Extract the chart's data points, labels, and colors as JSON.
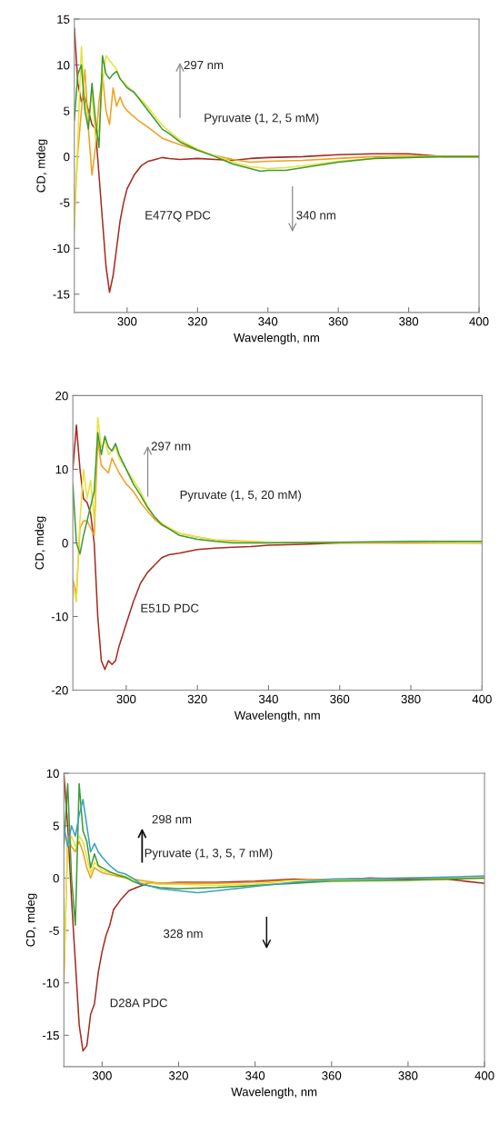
{
  "chart_data": [
    {
      "type": "line",
      "xlabel": "Wavelength, nm",
      "ylabel": "CD, mdeg",
      "xlim": [
        285,
        400
      ],
      "ylim": [
        -17,
        15
      ],
      "xticks": [
        300,
        320,
        340,
        360,
        380,
        400
      ],
      "yticks": [
        -15,
        -10,
        -5,
        0,
        5,
        10,
        15
      ],
      "series": [
        {
          "color": "#a52a1e",
          "x": [
            285,
            286,
            287,
            288,
            289,
            290,
            291,
            292,
            293,
            294,
            295,
            296,
            297,
            298,
            299,
            300,
            302,
            304,
            306,
            308,
            310,
            312,
            315,
            320,
            325,
            330,
            335,
            340,
            350,
            360,
            370,
            380,
            390,
            400
          ],
          "values": [
            14,
            8,
            6,
            6.5,
            5,
            3.5,
            3,
            -2,
            -7,
            -12,
            -14.8,
            -13,
            -10,
            -7,
            -5,
            -3.5,
            -2,
            -1,
            -0.5,
            -0.3,
            -0.1,
            -0.2,
            -0.3,
            -0.2,
            -0.3,
            -0.4,
            -0.2,
            -0.1,
            0,
            0.2,
            0.3,
            0.3,
            0,
            0
          ]
        },
        {
          "color": "#f0a020",
          "x": [
            285,
            286,
            287,
            288,
            289,
            290,
            291,
            292,
            293,
            294,
            295,
            296,
            297,
            298,
            299,
            300,
            303,
            306,
            310,
            315,
            320,
            325,
            330,
            335,
            340,
            350,
            360,
            370,
            380,
            390,
            400
          ],
          "values": [
            -6,
            0.5,
            5,
            9.5,
            3,
            -2,
            1,
            6,
            9,
            5,
            3.5,
            7.5,
            5.5,
            6.5,
            5.5,
            5,
            4,
            3.2,
            2,
            1.3,
            0.7,
            0.1,
            -0.3,
            -0.6,
            -0.5,
            -0.4,
            -0.2,
            0,
            0.1,
            0,
            0
          ]
        },
        {
          "color": "#e6e23c",
          "x": [
            285,
            286,
            287,
            288,
            289,
            290,
            291,
            292,
            293,
            294,
            295,
            296,
            297,
            298,
            300,
            302,
            305,
            310,
            315,
            320,
            325,
            330,
            335,
            340,
            345,
            350,
            360,
            370,
            380,
            400
          ],
          "values": [
            -8,
            2,
            12,
            6,
            4,
            7,
            2,
            3,
            8,
            11,
            10.5,
            10,
            9.5,
            8.5,
            7.7,
            7,
            5.8,
            3.4,
            1.8,
            0.8,
            0.1,
            -0.6,
            -1.1,
            -1.3,
            -1.2,
            -1,
            -0.5,
            -0.2,
            0,
            0
          ]
        },
        {
          "color": "#3c9a32",
          "x": [
            285,
            286,
            287,
            288,
            289,
            290,
            291,
            292,
            293,
            294,
            295,
            296,
            297,
            298,
            299,
            300,
            302,
            304,
            306,
            308,
            310,
            312,
            315,
            320,
            325,
            330,
            335,
            338,
            340,
            345,
            350,
            355,
            360,
            365,
            370,
            380,
            390,
            400
          ],
          "values": [
            4,
            9,
            10,
            5,
            3,
            8,
            4,
            1,
            11,
            9,
            8.5,
            9,
            9.3,
            8.5,
            8,
            7.5,
            7,
            6,
            5,
            4,
            3,
            2.5,
            1.6,
            0.7,
            0,
            -0.8,
            -1.3,
            -1.6,
            -1.5,
            -1.5,
            -1.2,
            -0.9,
            -0.6,
            -0.4,
            -0.2,
            -0.1,
            0,
            0
          ]
        }
      ],
      "annotations": [
        "297 nm",
        "Pyruvate (1, 2, 5 mM)",
        "E477Q PDC",
        "340 nm"
      ]
    },
    {
      "type": "line",
      "xlabel": "Wavelength, nm",
      "ylabel": "CD, mdeg",
      "xlim": [
        285,
        400
      ],
      "ylim": [
        -20,
        20
      ],
      "xticks": [
        300,
        320,
        340,
        360,
        380,
        400
      ],
      "yticks": [
        -20,
        -10,
        0,
        10,
        20
      ],
      "series": [
        {
          "color": "#a52a1e",
          "x": [
            285,
            286,
            287,
            288,
            289,
            290,
            291,
            292,
            293,
            294,
            295,
            296,
            297,
            298,
            300,
            302,
            304,
            306,
            308,
            310,
            312,
            315,
            320,
            325,
            330,
            335,
            340,
            350,
            360,
            370,
            380,
            400
          ],
          "values": [
            10,
            16,
            10,
            6,
            5.5,
            4,
            0,
            -10,
            -16,
            -17.2,
            -16,
            -16.5,
            -16,
            -14,
            -11,
            -8,
            -5.5,
            -4,
            -3,
            -2,
            -1.6,
            -1.4,
            -0.9,
            -0.7,
            -0.6,
            -0.5,
            -0.3,
            -0.2,
            0,
            0,
            0,
            0
          ]
        },
        {
          "color": "#f0a020",
          "x": [
            285,
            286,
            287,
            288,
            289,
            290,
            291,
            292,
            293,
            294,
            295,
            296,
            297,
            298,
            300,
            302,
            304,
            306,
            308,
            310,
            315,
            320,
            325,
            330,
            340,
            360,
            380,
            400
          ],
          "values": [
            -5,
            -7,
            2,
            3,
            3,
            2,
            1,
            14,
            10.5,
            10,
            9.5,
            11.5,
            10.5,
            9.5,
            8,
            7,
            5.5,
            4.3,
            3.2,
            2.4,
            1.3,
            0.8,
            0.4,
            0.3,
            0.1,
            0,
            0.1,
            0
          ]
        },
        {
          "color": "#e6e23c",
          "x": [
            285,
            286,
            287,
            288,
            289,
            290,
            291,
            292,
            293,
            294,
            295,
            296,
            297,
            298,
            300,
            302,
            304,
            306,
            308,
            310,
            315,
            320,
            325,
            330,
            340,
            360,
            380,
            400
          ],
          "values": [
            -6,
            -8,
            3,
            10,
            6,
            8.5,
            3,
            17,
            13,
            14,
            12,
            12.5,
            13,
            11.5,
            10,
            8.5,
            7,
            5,
            3.5,
            2.6,
            1.3,
            0.8,
            0.4,
            0.2,
            0.1,
            0.1,
            0.1,
            0
          ]
        },
        {
          "color": "#3c9a32",
          "x": [
            285,
            286,
            287,
            288,
            289,
            290,
            291,
            292,
            293,
            294,
            295,
            296,
            297,
            298,
            300,
            302,
            304,
            306,
            308,
            310,
            315,
            320,
            325,
            330,
            340,
            360,
            380,
            400
          ],
          "values": [
            8,
            0,
            -1.5,
            1,
            3,
            5,
            7,
            15,
            12,
            14.5,
            13,
            12.5,
            13.5,
            12,
            10,
            8,
            6.5,
            4.8,
            3.5,
            2.5,
            1,
            0.5,
            0.2,
            0,
            0,
            0.1,
            0.2,
            0.2
          ]
        }
      ],
      "annotations": [
        "297 nm",
        "Pyruvate (1, 5, 20 mM)",
        "E51D PDC"
      ]
    },
    {
      "type": "line",
      "xlabel": "Wavelength, nm",
      "ylabel": "CD, mdeg",
      "xlim": [
        290,
        400
      ],
      "ylim": [
        -18,
        10
      ],
      "xticks": [
        300,
        320,
        340,
        360,
        380,
        400
      ],
      "yticks": [
        -15,
        -10,
        -5,
        0,
        5,
        10
      ],
      "series": [
        {
          "color": "#a52a1e",
          "x": [
            290,
            291,
            292,
            293,
            294,
            295,
            296,
            297,
            298,
            299,
            300,
            301,
            302,
            303,
            305,
            307,
            309,
            312,
            316,
            320,
            330,
            340,
            350,
            360,
            370,
            380,
            390,
            400
          ],
          "values": [
            10,
            5,
            -2,
            -8,
            -14,
            -16.5,
            -16,
            -13,
            -12,
            -9,
            -7,
            -5.5,
            -4.5,
            -3,
            -2,
            -1.2,
            -0.9,
            -0.5,
            -0.5,
            -0.4,
            -0.4,
            -0.3,
            -0.1,
            -0.2,
            0,
            -0.1,
            -0.1,
            -0.5
          ]
        },
        {
          "color": "#f0a020",
          "x": [
            290,
            291,
            292,
            293,
            294,
            295,
            296,
            297,
            298,
            300,
            305,
            310,
            315,
            320,
            330,
            340,
            350,
            360,
            380,
            400
          ],
          "values": [
            -10,
            4,
            3,
            2.5,
            3.5,
            2.5,
            1,
            0,
            1,
            0.5,
            0.1,
            -0.2,
            -0.5,
            -0.5,
            -0.5,
            -0.4,
            -0.2,
            -0.1,
            0,
            0
          ]
        },
        {
          "color": "#e6e23c",
          "x": [
            290,
            291,
            292,
            293,
            294,
            295,
            296,
            297,
            298,
            300,
            305,
            310,
            315,
            320,
            330,
            340,
            350,
            360,
            380,
            400
          ],
          "values": [
            -9,
            3,
            4,
            3,
            4,
            3.5,
            2,
            0.5,
            1.5,
            0.7,
            0.3,
            -0.4,
            -0.6,
            -0.6,
            -0.7,
            -0.6,
            -0.2,
            -0.2,
            -0.2,
            0
          ]
        },
        {
          "color": "#3c9a32",
          "x": [
            290,
            291,
            292,
            293,
            294,
            295,
            296,
            297,
            298,
            299,
            300,
            302,
            304,
            306,
            308,
            310,
            315,
            320,
            330,
            340,
            350,
            360,
            380,
            400
          ],
          "values": [
            3,
            9,
            0,
            -4.5,
            9,
            4.5,
            3.5,
            1,
            2.3,
            1.2,
            1,
            0.6,
            0.3,
            0.1,
            -0.3,
            -0.6,
            -0.9,
            -1,
            -0.9,
            -0.7,
            -0.5,
            -0.3,
            -0.2,
            0
          ]
        },
        {
          "color": "#3aa0c0",
          "x": [
            290,
            291,
            292,
            293,
            294,
            295,
            296,
            297,
            298,
            299,
            300,
            302,
            304,
            306,
            308,
            310,
            315,
            320,
            325,
            330,
            335,
            340,
            350,
            360,
            380,
            390,
            400
          ],
          "values": [
            5,
            3,
            5,
            4,
            6,
            7.5,
            5,
            2.5,
            3.3,
            2.5,
            2,
            1.2,
            0.6,
            0.4,
            0,
            -0.5,
            -1,
            -1.2,
            -1.4,
            -1.2,
            -1,
            -0.8,
            -0.4,
            -0.1,
            0,
            0.1,
            0.2
          ]
        }
      ],
      "annotations": [
        "298 nm",
        "Pyruvate (1, 3, 5, 7 mM)",
        "328 nm",
        "D28A PDC"
      ]
    }
  ]
}
